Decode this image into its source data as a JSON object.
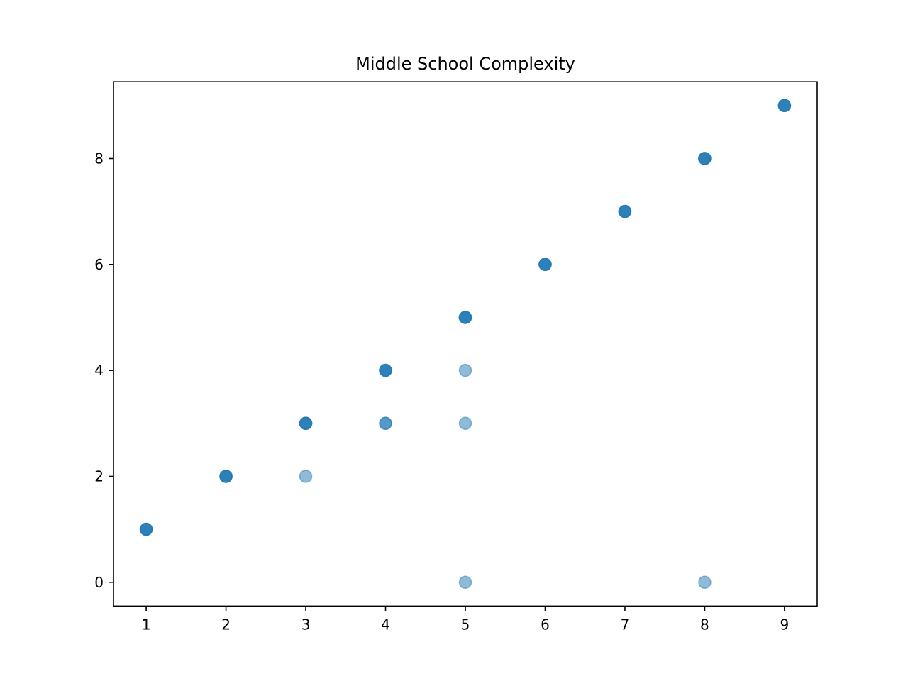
{
  "chart_data": {
    "type": "scatter",
    "title": "Middle School Complexity",
    "xlabel": "",
    "ylabel": "",
    "xlim": [
      0.59,
      9.41
    ],
    "ylim": [
      -0.45,
      9.45
    ],
    "xticks": [
      1,
      2,
      3,
      4,
      5,
      6,
      7,
      8,
      9
    ],
    "yticks": [
      0,
      2,
      4,
      6,
      8
    ],
    "grid": false,
    "marker_color": "#1f77b4",
    "marker_alpha": 0.5,
    "points": [
      {
        "x": 1,
        "y": 1
      },
      {
        "x": 1,
        "y": 1
      },
      {
        "x": 1,
        "y": 1
      },
      {
        "x": 1,
        "y": 1
      },
      {
        "x": 2,
        "y": 2
      },
      {
        "x": 2,
        "y": 2
      },
      {
        "x": 2,
        "y": 2
      },
      {
        "x": 2,
        "y": 2
      },
      {
        "x": 3,
        "y": 3
      },
      {
        "x": 3,
        "y": 3
      },
      {
        "x": 3,
        "y": 3
      },
      {
        "x": 3,
        "y": 3
      },
      {
        "x": 3,
        "y": 2
      },
      {
        "x": 4,
        "y": 4
      },
      {
        "x": 4,
        "y": 4
      },
      {
        "x": 4,
        "y": 4
      },
      {
        "x": 4,
        "y": 4
      },
      {
        "x": 4,
        "y": 3
      },
      {
        "x": 4,
        "y": 3
      },
      {
        "x": 5,
        "y": 5
      },
      {
        "x": 5,
        "y": 5
      },
      {
        "x": 5,
        "y": 5
      },
      {
        "x": 5,
        "y": 5
      },
      {
        "x": 5,
        "y": 4
      },
      {
        "x": 5,
        "y": 3
      },
      {
        "x": 5,
        "y": 0
      },
      {
        "x": 6,
        "y": 6
      },
      {
        "x": 6,
        "y": 6
      },
      {
        "x": 6,
        "y": 6
      },
      {
        "x": 6,
        "y": 6
      },
      {
        "x": 7,
        "y": 7
      },
      {
        "x": 7,
        "y": 7
      },
      {
        "x": 7,
        "y": 7
      },
      {
        "x": 7,
        "y": 7
      },
      {
        "x": 8,
        "y": 8
      },
      {
        "x": 8,
        "y": 8
      },
      {
        "x": 8,
        "y": 8
      },
      {
        "x": 8,
        "y": 8
      },
      {
        "x": 8,
        "y": 0
      },
      {
        "x": 9,
        "y": 9
      },
      {
        "x": 9,
        "y": 9
      },
      {
        "x": 9,
        "y": 9
      },
      {
        "x": 9,
        "y": 9
      }
    ]
  }
}
